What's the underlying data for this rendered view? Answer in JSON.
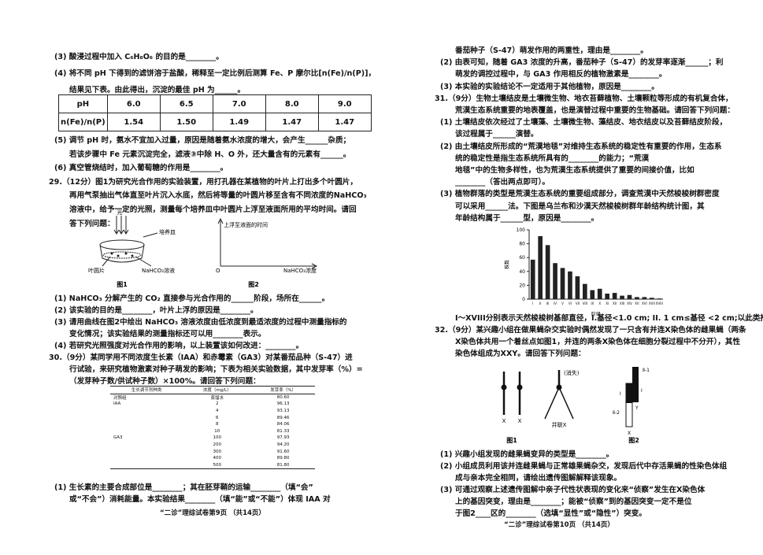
{
  "left": {
    "text_a": [
      "(3) 酸浸过程中加入 C₆H₈O₆ 的目的是________。",
      "(4) 将不同 pH 下得到的滤饼溶于盐酸，稀释至一定比例后测算 Fe、P 摩尔比[n(Fe)/n(P)]，",
      "结果见下表。由此得出，沉淀的最佳 pH 为______。"
    ],
    "ph_table": {
      "rows": [
        [
          "pH",
          "6.0",
          "6.5",
          "7.0",
          "8.0",
          "9.0"
        ],
        [
          "n(Fe)/n(P)",
          "1.54",
          "1.50",
          "1.49",
          "1.47",
          "1.47"
        ]
      ]
    },
    "text_b": [
      "(5) 调节 pH 时，氨水不宜加入过量，原因是随着氨水浓度的增大，会产生______杂质；",
      "若该步骤中 Fe 元素沉淀完全，滤液③中除 H、O 外，还大量含有的元素有______。",
      "(6) 真空管烧结时，加入葡萄糖的作用是________。",
      "29.（12分）图1为研究光合作用的实验装置，用打孔器在某植物的叶片上打出多个叶圆片，",
      "再用气泵抽出气体直至叶片沉入水底，然后将等量的叶圆片移至含有不同浓度的NaHCO₃",
      "溶液中，给予一定的光照，测量每个培养皿中叶圆片上浮至液面所用的平均时间。请回",
      "答下列问题："
    ],
    "q29_figure1": {
      "light": "光",
      "dish": "培养皿",
      "leaf_disc": "叶圆片",
      "solution": "NaHCO₃溶液",
      "caption": "图1"
    },
    "q29_figure2": {
      "y_label": "上浮至液面的时间",
      "origin": "O",
      "x_label": "NaHCO₃浓度",
      "caption": "图2"
    },
    "text_c": [
      "(1) NaHCO₃ 分解产生的 CO₂ 直接参与光合作用的______阶段，场所在______。",
      "(2) 该实验的目的是________，叶片上浮的原因是________。",
      "(3) 请用曲线在图2中绘出 NaHCO₃ 溶液浓度由低浓度到最适浓度的过程中测量指标的",
      "变化情况；该实验结果的测量指标还可以用________表示。",
      "(4) 若研究光照强度对光合作用的影响，以上装置该如何改进：________。",
      "30.（9分）某同学用不同浓度生长素（IAA）和赤霉素（GA3）对某番茄品种（S-47）进",
      "行试验，来研究植物激素对种子萌发的影响；下表为相关实验数据，其中发芽率（%）=",
      "（发芽种子数/供试种子数）×100%。请回答下列问题："
    ],
    "q30_table": {
      "header": [
        "生长调节剂种类",
        "浓度（mg/L）",
        "发芽率（%）"
      ],
      "rows": [
        [
          "对照组",
          "蒸馏水",
          "80.60"
        ],
        [
          "IAA",
          "2",
          "96.13"
        ],
        [
          null,
          "4",
          "93.13"
        ],
        [
          null,
          "6",
          "89.46"
        ],
        [
          null,
          "8",
          "84.06"
        ],
        [
          null,
          "10",
          "81.33"
        ],
        [
          "GA3",
          "100",
          "97.93"
        ],
        [
          null,
          "200",
          "94.20"
        ],
        [
          null,
          "300",
          "91.60"
        ],
        [
          null,
          "400",
          "89.80"
        ],
        [
          null,
          "500",
          "81.80"
        ]
      ]
    },
    "text_d": [
      "(1) 生长素的主要合成部位是________；其在胚芽鞘的运输________（填“会”",
      "或“不会”）消耗能量。本实验结果________（填“能”或“不能”）体现 IAA 对"
    ],
    "footer": "“二诊”理综试卷第9页 （共14页）"
  },
  "right": {
    "text_a": [
      "番茄种子（S-47）萌发作用的两重性，理由是________。",
      "(2) 由表可知，随着 GA3 浓度的升高，番茄种子（S-47）的发芽率逐渐______；利",
      "萌发的调控过程中，与 GA3 作用相反的植物激素是________。",
      "(3) 本实验的实验结论不一定适用于其他植物，原因是________。",
      "31.（9分）生物土壤结皮是土壤微生物、地衣苔藓植物、土壤颗粒等形成的有机复合体，",
      "荒漠生态系统重要的地表覆盖，也是演替过程中重要的生物基础。请回答下列问题：",
      "(1) 土壤结皮依次经过了土壤藻、土壤微生物、藻结皮、地衣结皮以及苔藓结皮阶段，",
      "该过程属于______演替。",
      "(2) 由土壤结皮所形成的“荒漠地毯”对维持生态系统的稳定性有重要的作用，生态系",
      "统的稳定性是指生态系统所具有的________的能力；“荒漠",
      "地毯”中的生物多样性，也为荒漠生态系统提供了重要的间接价值，比如",
      "________（答出两点即可）。",
      "(3) 植物群落的类型是荒漠生态系统的重要组成部分，调查荒漠中天然梭梭树群密度",
      "可以采用______法。下图是乌兰布和沙漠天然梭梭树群年龄结构统计图，其",
      "年龄结构属于______型，原因是________。"
    ],
    "chart": {
      "type": "bar",
      "y_label": "株数",
      "x_label": "阶级",
      "categories": [
        "I",
        "II",
        "III",
        "IV",
        "V",
        "VI",
        "VII",
        "VIII",
        "IX",
        "X",
        "XI",
        "XII",
        "XIII",
        "XIV",
        "XV",
        "XVI",
        "XVII",
        "XVIII"
      ],
      "values": [
        57,
        91,
        78,
        52,
        45,
        40,
        33,
        22,
        13,
        15,
        8,
        9,
        5,
        6,
        3,
        3,
        2,
        1
      ],
      "color": "#222222",
      "ylim": [
        0,
        100
      ],
      "yticks": [
        0,
        20,
        40,
        60,
        80,
        100
      ]
    },
    "text_b": [
      "I～XVIII分别表示天然梭梭树基部直径，I.基径<1.0 cm; II. 1 cm≤基径 <2 cm;以此类推",
      "32.（9分）某兴趣小组在做果蝇杂交实验时偶然发现了一只含有并连X染色体的雌果蝇（两条",
      "X染色体共用一个着丝点如图1，并连的两条X染色体在细胞分裂过程中不分开），其性",
      "染色体组成为XXY。请回答下列问题："
    ],
    "q32_figure1": {
      "x_left": "X",
      "x_right": "X",
      "lost": "(消失)",
      "attached": "并联X",
      "caption": "图1"
    },
    "q32_figure2": {
      "region_ii1": "Ⅱ-1",
      "region_i_x": "Ⅰ",
      "region_i_y": "Ⅰ",
      "y": "Y",
      "region_ii2": "Ⅱ-2",
      "x": "X",
      "caption": "图2"
    },
    "text_c": [
      "(1) 兴趣小组发现的雌果蝇变异的类型是________。",
      "(2) 小组成员利用该并连雌果蝇与正常雄果蝇杂交，发现后代中存活果蝇的性染色体组",
      "成与亲本完全相同，请绘出遗传图解解释该现象。",
      "(3) 可通过观察上述遗传图解中亲子代性状表现的变化来“侦察”发生在X染色体",
      "上的基因突变，理由是________；能被“侦察”到的基因突变一定不是位",
      "于图2____区的________（选填“显性”或“隐性”）突变。"
    ],
    "footer": "“二诊”理综试卷第10页 （共14页）"
  }
}
